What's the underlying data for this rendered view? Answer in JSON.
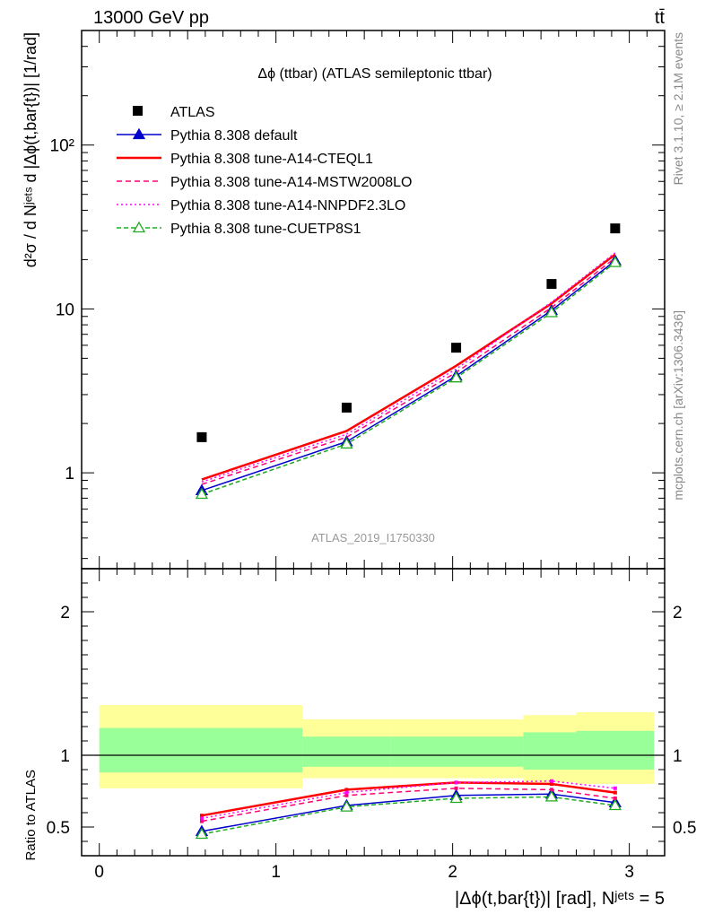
{
  "header": {
    "energy_label": "13000 GeV pp",
    "process_label": "tt̄"
  },
  "side_labels": {
    "rivet": "Rivet 3.1.10, ≥ 2.1M events",
    "mcplots": "mcplots.cern.ch [arXiv:1306.3436]"
  },
  "chart_data": {
    "type": "line",
    "title": "Δϕ (ttbar) (ATLAS semileptonic ttbar)",
    "analysis_label": "ATLAS_2019_I1750330",
    "ylabel": "d²σ / d Nʲᵉᵗˢ d |Δϕ(t,bar{t})| [1/rad]",
    "xlabel": "|Δϕ(t,bar{t})| [rad], Nʲᵉᵗˢ = 5",
    "ratio_ylabel": "Ratio to ATLAS",
    "xlim": [
      -0.1,
      3.2
    ],
    "ylim": [
      0.26,
      500
    ],
    "yscale": "log",
    "ratio_ylim": [
      0.3,
      2.3
    ],
    "x_ticks": [
      "0",
      "1",
      "2",
      "3"
    ],
    "y_ticks": [
      "1",
      "10",
      "10²"
    ],
    "ratio_ticks": [
      "0.5",
      "1",
      "2"
    ],
    "x": [
      0.58,
      1.4,
      2.02,
      2.56,
      2.92
    ],
    "bin_edges": [
      0,
      1.15,
      1.65,
      2.4,
      2.7,
      3.14
    ],
    "data": {
      "name": "ATLAS",
      "color": "#000000",
      "values": [
        1.65,
        2.5,
        5.8,
        14.2,
        31.0
      ]
    },
    "series": [
      {
        "name": "Pythia 8.308 default",
        "color": "#0000cc",
        "dash": "",
        "marker": "triangle-filled",
        "values": [
          0.78,
          1.55,
          3.9,
          9.8,
          19.7
        ],
        "ratio": [
          0.47,
          0.65,
          0.72,
          0.73,
          0.67
        ]
      },
      {
        "name": "Pythia 8.308 tune-A14-CTEQL1",
        "color": "#ff0000",
        "dash": "",
        "marker": "none",
        "width": 2.5,
        "values": [
          0.91,
          1.8,
          4.5,
          10.8,
          21.5
        ],
        "ratio": [
          0.58,
          0.76,
          0.81,
          0.8,
          0.74
        ]
      },
      {
        "name": "Pythia 8.308 tune-A14-MSTW2008LO",
        "color": "#ff0077",
        "dash": "6,4",
        "marker": "none",
        "values": [
          0.85,
          1.65,
          4.1,
          10.2,
          20.5
        ],
        "ratio": [
          0.54,
          0.72,
          0.77,
          0.76,
          0.7
        ]
      },
      {
        "name": "Pythia 8.308 tune-A14-NNPDF2.3LO",
        "color": "#ff00ff",
        "dash": "2,3",
        "marker": "none",
        "values": [
          0.88,
          1.72,
          4.3,
          11.0,
          22.0
        ],
        "ratio": [
          0.56,
          0.74,
          0.81,
          0.82,
          0.77
        ]
      },
      {
        "name": "Pythia 8.308 tune-CUETP8S1",
        "color": "#22aa22",
        "dash": "5,3",
        "marker": "triangle-open",
        "values": [
          0.74,
          1.5,
          3.8,
          9.5,
          19.2
        ],
        "ratio": [
          0.45,
          0.64,
          0.7,
          0.71,
          0.65
        ]
      }
    ],
    "ratio_bands": {
      "yellow": [
        [
          0.77,
          1.35
        ],
        [
          0.84,
          1.25
        ],
        [
          0.84,
          1.25
        ],
        [
          0.81,
          1.28
        ],
        [
          0.8,
          1.3
        ]
      ],
      "green": [
        [
          0.88,
          1.19
        ],
        [
          0.92,
          1.13
        ],
        [
          0.92,
          1.13
        ],
        [
          0.9,
          1.16
        ],
        [
          0.9,
          1.17
        ]
      ],
      "yellow_color": "#ffff99",
      "green_color": "#99ff99"
    }
  }
}
